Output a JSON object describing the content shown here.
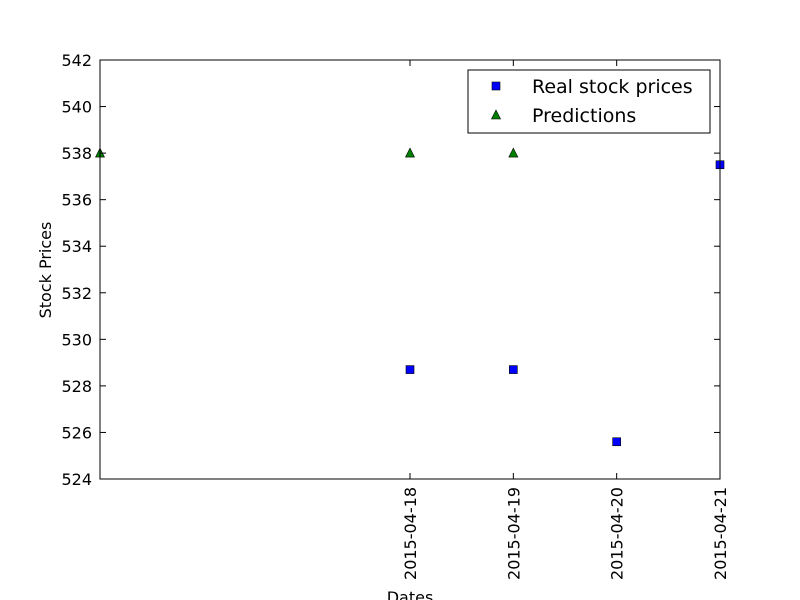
{
  "chart_data": {
    "type": "scatter",
    "xlabel": "Dates",
    "ylabel": "Stock Prices",
    "x_ticks": [
      "2015-04-18",
      "2015-04-19",
      "2015-04-20",
      "2015-04-21"
    ],
    "xlim": [
      "2015-04-15",
      "2015-04-21"
    ],
    "ylim": [
      524,
      542
    ],
    "y_ticks": [
      "524",
      "526",
      "528",
      "530",
      "532",
      "534",
      "536",
      "538",
      "540",
      "542"
    ],
    "grid": false,
    "legend_position": "top-right",
    "series": [
      {
        "name": "Real stock prices",
        "marker": "square",
        "color": "#0000ff",
        "points": [
          {
            "x": "2015-04-18",
            "y": 528.7
          },
          {
            "x": "2015-04-19",
            "y": 528.7
          },
          {
            "x": "2015-04-20",
            "y": 525.6
          },
          {
            "x": "2015-04-21",
            "y": 537.5
          }
        ]
      },
      {
        "name": "Predictions",
        "marker": "triangle",
        "color": "#008000",
        "points": [
          {
            "x": "2015-04-15",
            "y": 538.0
          },
          {
            "x": "2015-04-18",
            "y": 538.0
          },
          {
            "x": "2015-04-19",
            "y": 538.0
          }
        ]
      }
    ]
  }
}
